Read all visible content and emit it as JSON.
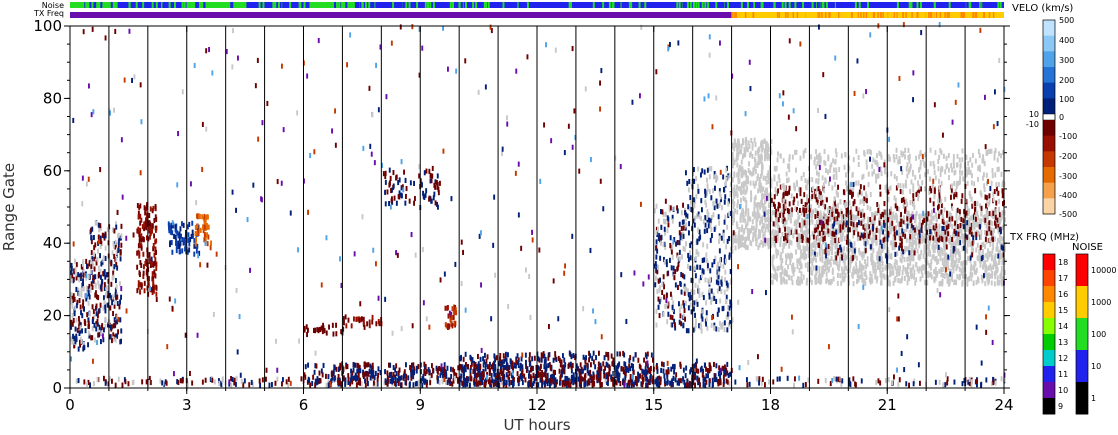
{
  "chart_data": {
    "type": "heatmap",
    "xlabel": "UT hours",
    "ylabel": "Range Gate",
    "xlim": [
      0,
      24
    ],
    "ylim": [
      0,
      100
    ],
    "x_ticks": [
      "0",
      "3",
      "6",
      "9",
      "12",
      "15",
      "18",
      "21",
      "24"
    ],
    "y_ticks": [
      "0",
      "20",
      "40",
      "60",
      "80",
      "100"
    ],
    "strip_labels": [
      "Noise",
      "TX Freq"
    ],
    "noise_strip": {
      "segments": [
        {
          "from": 0.0,
          "to": 1.2,
          "color": "#22dd22"
        },
        {
          "from": 1.2,
          "to": 3.0,
          "color": "#2222ee"
        },
        {
          "from": 3.0,
          "to": 4.5,
          "color": "#22dd22"
        },
        {
          "from": 4.5,
          "to": 6.0,
          "color": "#2222ee"
        },
        {
          "from": 6.0,
          "to": 7.5,
          "color": "#22dd22"
        },
        {
          "from": 7.5,
          "to": 24.0,
          "color": "#2222ee"
        }
      ]
    },
    "freq_strip": {
      "segments": [
        {
          "from": 0.0,
          "to": 17.0,
          "color": "#6a0dad"
        },
        {
          "from": 17.0,
          "to": 24.0,
          "color": "#ffcc00"
        }
      ]
    },
    "velocity_colorbar": {
      "title": "VELO (km/s)",
      "tick_labels": [
        "500",
        "400",
        "300",
        "200",
        "100",
        "0",
        "10",
        "-10",
        "-100",
        "-200",
        "-300",
        "-400",
        "-500"
      ],
      "colors": [
        "#bfe3ff",
        "#8cc8f5",
        "#4fa3e8",
        "#2374d6",
        "#0a3fb0",
        "#00207a",
        "#ffffff",
        "#6e0000",
        "#9a1000",
        "#c53800",
        "#e56a00",
        "#f5a04a",
        "#fbd4a6"
      ]
    },
    "freq_colorbar": {
      "title": "TX FRQ (MHz)",
      "tick_labels": [
        "18",
        "17",
        "16",
        "15",
        "14",
        "13",
        "12",
        "11",
        "10",
        "9"
      ],
      "colors": [
        "#ff0000",
        "#ff4400",
        "#ff8800",
        "#ffcc00",
        "#88ff00",
        "#00cc00",
        "#00cccc",
        "#2222ee",
        "#6a0dad",
        "#000000"
      ]
    },
    "noise_colorbar": {
      "title": "NOISE",
      "tick_labels": [
        "10000",
        "1000",
        "100",
        "10",
        "1"
      ],
      "colors": [
        "#ff0000",
        "#ffcc00",
        "#22dd22",
        "#2222ee",
        "#000000"
      ]
    },
    "vertical_lines_at_hours": [
      1,
      2,
      3,
      4,
      5,
      6,
      7,
      8,
      9,
      10,
      11,
      12,
      13,
      14,
      15,
      16,
      17,
      18,
      19,
      20,
      21,
      22,
      23
    ],
    "scatter_regions": [
      {
        "x": [
          0.0,
          0.5
        ],
        "y": [
          10,
          35
        ],
        "colors": [
          "#c8c8c8",
          "#00207a",
          "#6e0000"
        ],
        "density": 0.55
      },
      {
        "x": [
          0.5,
          1.3
        ],
        "y": [
          12,
          45
        ],
        "colors": [
          "#00207a",
          "#c8c8c8",
          "#6e0000"
        ],
        "density": 0.45
      },
      {
        "x": [
          1.7,
          2.2
        ],
        "y": [
          25,
          50
        ],
        "colors": [
          "#6e0000",
          "#9a1000"
        ],
        "density": 0.6
      },
      {
        "x": [
          2.5,
          3.3
        ],
        "y": [
          36,
          45
        ],
        "colors": [
          "#00207a",
          "#0a3fb0"
        ],
        "density": 0.55
      },
      {
        "x": [
          3.2,
          3.6
        ],
        "y": [
          38,
          47
        ],
        "colors": [
          "#c53800",
          "#e56a00"
        ],
        "density": 0.55
      },
      {
        "x": [
          6.0,
          7.0
        ],
        "y": [
          14,
          17
        ],
        "colors": [
          "#6e0000"
        ],
        "density": 0.45
      },
      {
        "x": [
          7.0,
          8.0
        ],
        "y": [
          16,
          19
        ],
        "colors": [
          "#6e0000",
          "#9a1000"
        ],
        "density": 0.45
      },
      {
        "x": [
          8.0,
          9.5
        ],
        "y": [
          50,
          60
        ],
        "colors": [
          "#6e0000",
          "#00207a"
        ],
        "density": 0.25
      },
      {
        "x": [
          9.6,
          9.9
        ],
        "y": [
          16,
          22
        ],
        "colors": [
          "#c53800",
          "#9a1000"
        ],
        "density": 0.8
      },
      {
        "x": [
          15.0,
          15.8
        ],
        "y": [
          15,
          50
        ],
        "colors": [
          "#00207a",
          "#c8c8c8",
          "#6e0000"
        ],
        "density": 0.3
      },
      {
        "x": [
          15.8,
          17.0
        ],
        "y": [
          15,
          60
        ],
        "colors": [
          "#c8c8c8",
          "#00207a"
        ],
        "density": 0.3
      },
      {
        "x": [
          17.0,
          18.0
        ],
        "y": [
          38,
          68
        ],
        "colors": [
          "#c8c8c8"
        ],
        "density": 0.7
      },
      {
        "x": [
          18.0,
          24.0
        ],
        "y": [
          28,
          48
        ],
        "colors": [
          "#c8c8c8"
        ],
        "density": 0.6
      },
      {
        "x": [
          18.0,
          24.0
        ],
        "y": [
          40,
          55
        ],
        "colors": [
          "#c8c8c8",
          "#6e0000"
        ],
        "density": 0.35
      },
      {
        "x": [
          18.0,
          24.0
        ],
        "y": [
          55,
          65
        ],
        "colors": [
          "#c8c8c8"
        ],
        "density": 0.25
      },
      {
        "x": [
          19.0,
          24.0
        ],
        "y": [
          35,
          45
        ],
        "colors": [
          "#6e0000",
          "#00207a"
        ],
        "density": 0.12
      },
      {
        "x": [
          0.0,
          24.0
        ],
        "y": [
          0,
          2
        ],
        "colors": [
          "#00207a",
          "#6e0000",
          "#c8c8c8"
        ],
        "density": 0.35
      },
      {
        "x": [
          6.0,
          17.0
        ],
        "y": [
          0,
          6
        ],
        "colors": [
          "#00207a",
          "#6e0000"
        ],
        "density": 0.5
      },
      {
        "x": [
          10.0,
          15.0
        ],
        "y": [
          0,
          9
        ],
        "colors": [
          "#6e0000",
          "#00207a"
        ],
        "density": 0.35
      }
    ],
    "sparse_noise": {
      "x": [
        0,
        24
      ],
      "y": [
        0,
        100
      ],
      "colors": [
        "#c8c8c8",
        "#6e0000",
        "#00207a",
        "#c53800",
        "#4fa3e8",
        "#6a0dad"
      ],
      "count": 420
    }
  }
}
